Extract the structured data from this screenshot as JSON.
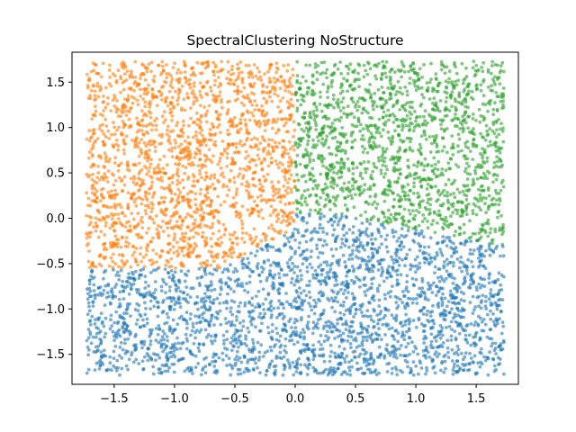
{
  "chart_data": {
    "type": "scatter",
    "title": "SpectralClustering NoStructure",
    "xlabel": "",
    "ylabel": "",
    "xlim": [
      -1.85,
      1.85
    ],
    "ylim": [
      -1.83,
      1.83
    ],
    "x_ticks": [
      -1.5,
      -1.0,
      -0.5,
      0.0,
      0.5,
      1.0,
      1.5
    ],
    "x_tick_labels": [
      "−1.5",
      "−1.0",
      "−0.5",
      "0.0",
      "0.5",
      "1.0",
      "1.5"
    ],
    "y_ticks": [
      1.5,
      1.0,
      0.5,
      0.0,
      -0.5,
      -1.0,
      -1.5
    ],
    "y_tick_labels": [
      "1.5",
      "1.0",
      "0.5",
      "0.0",
      "−0.5",
      "−1.0",
      "−1.5"
    ],
    "grid": false,
    "legend": "none",
    "point_domain": {
      "x": [
        -1.73,
        1.73
      ],
      "y": [
        -1.73,
        1.73
      ]
    },
    "series": [
      {
        "color": "#1f77b4",
        "region": "bottom half: y below ~-0.5 on the left, below ~0.0 on the right",
        "sample_points": [
          [
            -1.5,
            -1.2
          ],
          [
            -1.0,
            -0.8
          ],
          [
            -0.5,
            -1.4
          ],
          [
            0.0,
            -1.0
          ],
          [
            0.5,
            -0.6
          ],
          [
            1.0,
            -1.3
          ],
          [
            1.5,
            -0.9
          ]
        ]
      },
      {
        "color": "#ff7f0e",
        "region": "top-left: x below ~0.0, y above ~-0.5",
        "sample_points": [
          [
            -1.5,
            1.2
          ],
          [
            -1.2,
            0.3
          ],
          [
            -0.8,
            -0.3
          ],
          [
            -0.5,
            1.4
          ],
          [
            -0.3,
            0.6
          ],
          [
            -1.6,
            -0.4
          ]
        ]
      },
      {
        "color": "#2ca02c",
        "region": "top-right: x above ~0.0, y above ~0.0",
        "sample_points": [
          [
            0.2,
            1.5
          ],
          [
            0.5,
            0.6
          ],
          [
            1.0,
            1.2
          ],
          [
            1.3,
            0.2
          ],
          [
            1.6,
            -0.3
          ],
          [
            0.8,
            -0.1
          ]
        ]
      }
    ]
  }
}
